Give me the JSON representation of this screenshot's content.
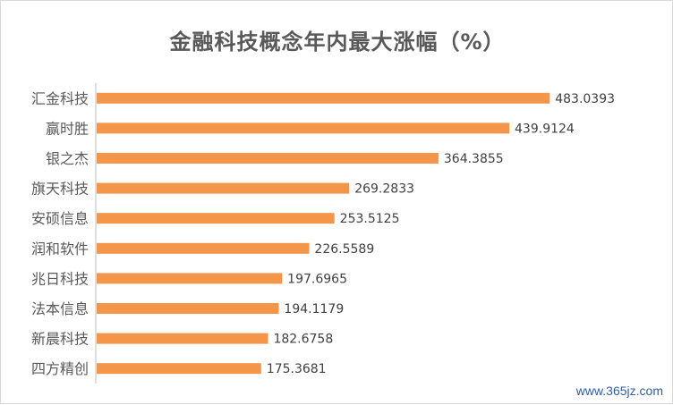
{
  "chart_data": {
    "type": "bar",
    "orientation": "horizontal",
    "title": "金融科技概念年内最大涨幅（%）",
    "categories": [
      "汇金科技",
      "赢时胜",
      "银之杰",
      "旗天科技",
      "安硕信息",
      "润和软件",
      "兆日科技",
      "法本信息",
      "新晨科技",
      "四方精创"
    ],
    "values": [
      483.0393,
      439.9124,
      364.3855,
      269.2833,
      253.5125,
      226.5589,
      197.6965,
      194.1179,
      182.6758,
      175.3681
    ],
    "value_labels": [
      "483.0393",
      "439.9124",
      "364.3855",
      "269.2833",
      "253.5125",
      "226.5589",
      "197.6965",
      "194.1179",
      "182.6758",
      "175.3681"
    ],
    "xlim": [
      0,
      500
    ],
    "grid": false,
    "bar_color": "#F4964A",
    "axis_color": "#bfbfbf"
  },
  "watermark": "www.365jz.com"
}
